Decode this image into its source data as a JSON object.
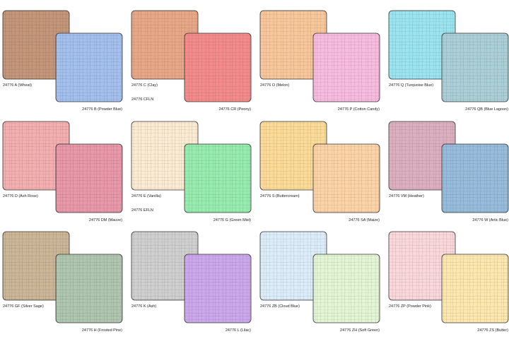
{
  "swatches": [
    {
      "back": {
        "label": "24776 A (Wheat)",
        "color": "#c4967a"
      },
      "front": {
        "label": "24776 B (Powder Blue)",
        "color": "#a4c0ee"
      }
    },
    {
      "back": {
        "label": "24776 C (Clay)",
        "color": "#e8a888"
      },
      "front": {
        "label": "24776 CR (Peony)",
        "color": "#f48c8c"
      },
      "extra": "24776 CFLN"
    },
    {
      "back": {
        "label": "24776 O (Melon)",
        "color": "#f8c89c"
      },
      "front": {
        "label": "24776 P (Cotton Candy)",
        "color": "#f8bce0"
      }
    },
    {
      "back": {
        "label": "24776 Q (Turquoise Blue)",
        "color": "#9ce4f0"
      },
      "front": {
        "label": "24776 QB (Blue Lagoon)",
        "color": "#acd0d8"
      }
    },
    {
      "back": {
        "label": "24776 D (Ash Rose)",
        "color": "#f4b0b0"
      },
      "front": {
        "label": "24776 DM (Mauve)",
        "color": "#e898a8"
      }
    },
    {
      "back": {
        "label": "24776 E (Vanilla)",
        "color": "#fcecd4"
      },
      "front": {
        "label": "24776 G (Green Mist)",
        "color": "#98ecb0"
      },
      "extra": "24776 EFLN"
    },
    {
      "back": {
        "label": "24776 S (Buttercream)",
        "color": "#fcdc98"
      },
      "front": {
        "label": "24776 SA (Maize)",
        "color": "#fcd4a8"
      }
    },
    {
      "back": {
        "label": "24776 VM (Heather)",
        "color": "#dcb0c0"
      },
      "front": {
        "label": "24776 W (Artic Blue)",
        "color": "#98bcdc"
      }
    },
    {
      "back": {
        "label": "24776 GF (Silver Sage)",
        "color": "#ccb698"
      },
      "front": {
        "label": "24776 H (Frosted Pine)",
        "color": "#b0c6b0"
      }
    },
    {
      "back": {
        "label": "24776 K (Ash)",
        "color": "#d0d0d0"
      },
      "front": {
        "label": "24776 L (Lilac)",
        "color": "#cca8ec"
      }
    },
    {
      "back": {
        "label": "24776 ZB (Cloud Blue)",
        "color": "#ddeefa"
      },
      "front": {
        "label": "24776 ZH (Soft Green)",
        "color": "#e4f6d6"
      }
    },
    {
      "back": {
        "label": "24776 ZP (Powder Pink)",
        "color": "#fad8dc"
      },
      "front": {
        "label": "24776 ZS (Butter)",
        "color": "#fde8b0"
      }
    }
  ]
}
